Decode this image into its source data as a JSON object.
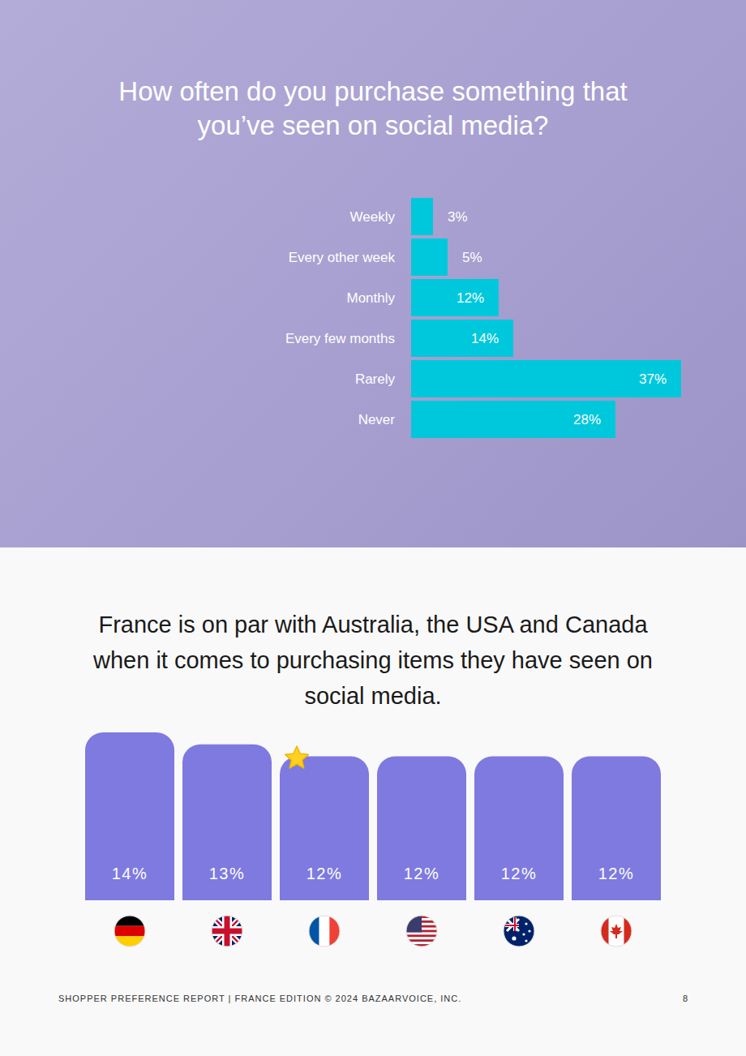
{
  "chart_data": [
    {
      "type": "bar",
      "title": "How often do you purchase something that you’ve seen on social media?",
      "orientation": "horizontal",
      "categories": [
        "Weekly",
        "Every other week",
        "Monthly",
        "Every few months",
        "Rarely",
        "Never"
      ],
      "values": [
        3,
        5,
        12,
        14,
        37,
        28
      ],
      "value_labels": [
        "3%",
        "5%",
        "12%",
        "14%",
        "37%",
        "28%"
      ],
      "color": "#00c8dc",
      "data_labels": true,
      "tick_labels": "y",
      "grid": false
    },
    {
      "type": "bar",
      "title": "France is on par with Australia, the USA and Canada when it comes to purchasing items they have seen on social media.",
      "categories": [
        null,
        null,
        null,
        null,
        null,
        null
      ],
      "values": [
        14,
        13,
        12,
        12,
        12,
        12
      ],
      "value_labels": [
        "14%",
        "13%",
        "12%",
        "12%",
        "12%",
        "12%"
      ],
      "color": "#7e7ae0",
      "data_labels": true,
      "tick_labels": false,
      "grid": false
    }
  ],
  "footer": "SHOPPER PREFERENCE REPORT | FRANCE EDITION © 2024 BAZAARVOICE, INC.",
  "page_number": "8"
}
